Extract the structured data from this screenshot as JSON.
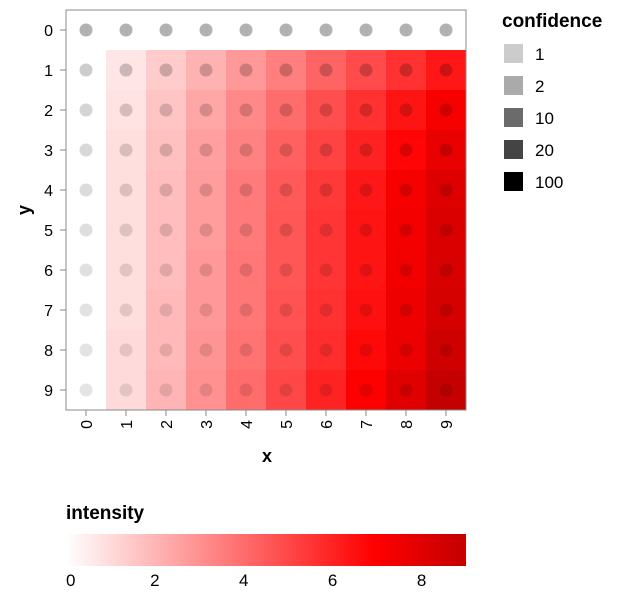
{
  "chart_data": {
    "type": "heatmap",
    "x_title": "x",
    "y_title": "y",
    "x_categories": [
      "0",
      "1",
      "2",
      "3",
      "4",
      "5",
      "6",
      "7",
      "8",
      "9"
    ],
    "y_categories": [
      "0",
      "1",
      "2",
      "3",
      "4",
      "5",
      "6",
      "7",
      "8",
      "9"
    ],
    "cells": [
      [
        0.0,
        0.0,
        0.0,
        0.0,
        0.0,
        0.0,
        0.0,
        0.0,
        0.0,
        0.0
      ],
      [
        0.0,
        0.7,
        1.4,
        2.1,
        2.8,
        3.5,
        4.2,
        4.9,
        5.6,
        6.3
      ],
      [
        0.0,
        0.8,
        1.6,
        2.4,
        3.2,
        4.0,
        4.8,
        5.6,
        6.4,
        7.2
      ],
      [
        0.0,
        0.9,
        1.7,
        2.6,
        3.4,
        4.3,
        5.1,
        6.0,
        6.8,
        7.7
      ],
      [
        0.0,
        0.9,
        1.8,
        2.7,
        3.6,
        4.5,
        5.4,
        6.3,
        7.2,
        8.1
      ],
      [
        0.0,
        0.9,
        1.8,
        2.7,
        3.6,
        4.6,
        5.5,
        6.4,
        7.3,
        8.2
      ],
      [
        0.0,
        0.9,
        1.8,
        2.8,
        3.7,
        4.6,
        5.5,
        6.4,
        7.4,
        8.3
      ],
      [
        0.0,
        0.9,
        1.9,
        2.8,
        3.7,
        4.7,
        5.6,
        6.5,
        7.5,
        8.4
      ],
      [
        0.0,
        1.0,
        1.9,
        2.9,
        3.8,
        4.8,
        5.7,
        6.7,
        7.6,
        8.6
      ],
      [
        0.0,
        1.0,
        2.0,
        3.0,
        4.0,
        5.0,
        6.0,
        7.0,
        8.0,
        9.0
      ]
    ],
    "confidence": [
      [
        100,
        100,
        100,
        100,
        100,
        100,
        100,
        100,
        100,
        100
      ],
      [
        10,
        10,
        10,
        10,
        10,
        10,
        10,
        10,
        10,
        10
      ],
      [
        5,
        5,
        5,
        5,
        5,
        5,
        5,
        5,
        5,
        5
      ],
      [
        3.3,
        3.3,
        3.3,
        3.3,
        3.3,
        3.3,
        3.3,
        3.3,
        3.3,
        3.3
      ],
      [
        2.5,
        2.5,
        2.5,
        2.5,
        2.5,
        2.5,
        2.5,
        2.5,
        2.5,
        2.5
      ],
      [
        2,
        2,
        2,
        2,
        2,
        2,
        2,
        2,
        2,
        2
      ],
      [
        1.7,
        1.7,
        1.7,
        1.7,
        1.7,
        1.7,
        1.7,
        1.7,
        1.7,
        1.7
      ],
      [
        1.4,
        1.4,
        1.4,
        1.4,
        1.4,
        1.4,
        1.4,
        1.4,
        1.4,
        1.4
      ],
      [
        1.2,
        1.2,
        1.2,
        1.2,
        1.2,
        1.2,
        1.2,
        1.2,
        1.2,
        1.2
      ],
      [
        1.1,
        1.1,
        1.1,
        1.1,
        1.1,
        1.1,
        1.1,
        1.1,
        1.1,
        1.1
      ]
    ],
    "intensity_legend": {
      "title": "intensity",
      "domain": [
        0,
        9
      ],
      "ticks": [
        "0",
        "2",
        "4",
        "6",
        "8"
      ],
      "colors": [
        "#ffffff",
        "#ff0000",
        "#c40000"
      ]
    },
    "confidence_legend": {
      "title": "confidence",
      "items": [
        {
          "label": "1",
          "color": "#cccccc"
        },
        {
          "label": "2",
          "color": "#aaaaaa"
        },
        {
          "label": "10",
          "color": "#6b6b6b"
        },
        {
          "label": "20",
          "color": "#444444"
        },
        {
          "label": "100",
          "color": "#000000"
        }
      ]
    },
    "grid": false
  }
}
